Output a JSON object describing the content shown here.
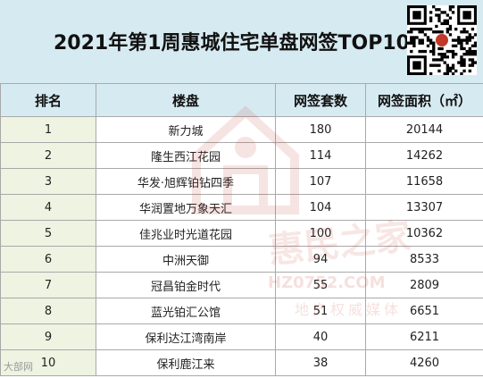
{
  "title": "2021年第1周惠城住宅单盘网签TOP10",
  "table": {
    "headers": [
      "排名",
      "楼盘",
      "网签套数",
      "网签面积（㎡）"
    ],
    "rows": [
      [
        "1",
        "新力城",
        "180",
        "20144"
      ],
      [
        "2",
        "隆生西江花园",
        "114",
        "14262"
      ],
      [
        "3",
        "华发·旭辉铂钻四季",
        "107",
        "11658"
      ],
      [
        "4",
        "华润置地万象天汇",
        "104",
        "13307"
      ],
      [
        "5",
        "佳兆业时光道花园",
        "100",
        "10362"
      ],
      [
        "6",
        "中洲天御",
        "94",
        "8533"
      ],
      [
        "7",
        "冠昌铂金时代",
        "55",
        "2809"
      ],
      [
        "8",
        "蓝光铂汇公馆",
        "51",
        "6651"
      ],
      [
        "9",
        "保利达江湾南岸",
        "40",
        "6211"
      ],
      [
        "10",
        "保利鹿江来",
        "38",
        "4260"
      ]
    ]
  },
  "watermark": {
    "brand": "惠民之家",
    "url": "HZ0752.COM",
    "slogan": "地产权威媒体",
    "corner": "大部网"
  },
  "colors": {
    "header_bg": "#d6eaf1",
    "rank_col_bg": "#eef3e2",
    "border": "#a9a9a9",
    "watermark": "#c0392b"
  },
  "icons": {
    "qr": "qr-code-icon",
    "logo": "house-logo-icon"
  }
}
